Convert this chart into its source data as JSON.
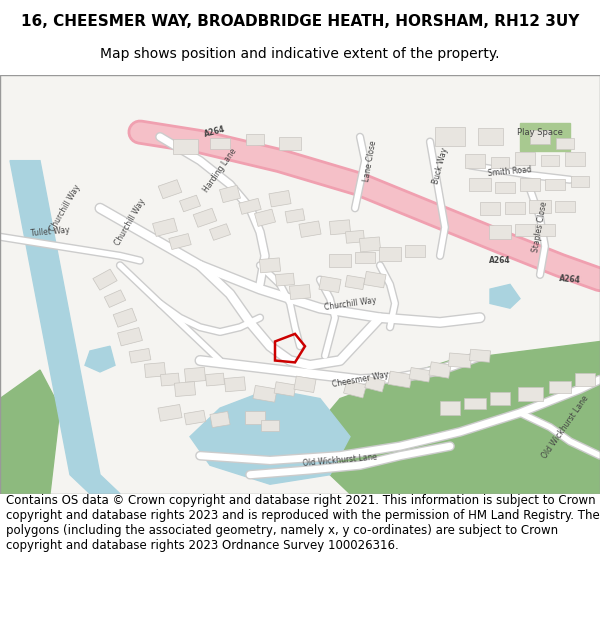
{
  "title_line1": "16, CHEESMER WAY, BROADBRIDGE HEATH, HORSHAM, RH12 3UY",
  "title_line2": "Map shows position and indicative extent of the property.",
  "footer_text": "Contains OS data © Crown copyright and database right 2021. This information is subject to Crown copyright and database rights 2023 and is reproduced with the permission of HM Land Registry. The polygons (including the associated geometry, namely x, y co-ordinates) are subject to Crown copyright and database rights 2023 Ordnance Survey 100026316.",
  "title_fontsize": 11,
  "subtitle_fontsize": 10,
  "footer_fontsize": 8.5,
  "bg_color": "#ffffff",
  "title_color": "#000000",
  "footer_color": "#000000",
  "fig_width": 6.0,
  "fig_height": 6.25,
  "dpi": 100,
  "road_pink_outer": "#f0a0b0",
  "road_pink_inner": "#f5c0c8",
  "road_white": "#ffffff",
  "road_edge": "#cccccc",
  "building_color": "#e8e5e0",
  "building_edge": "#c8c5c0",
  "water_color": "#aad3df",
  "green_color": "#8dba7e",
  "green_light": "#a8c990",
  "highlight_color": "#cc0000",
  "map_bg": "#f5f4f1",
  "label_color": "#444444",
  "label_fontsize": 5.5,
  "play_space_fontsize": 6.0
}
